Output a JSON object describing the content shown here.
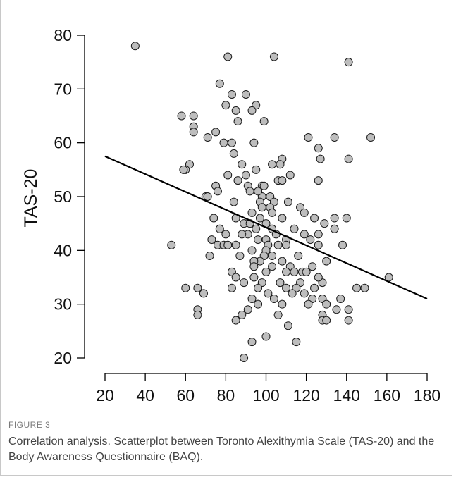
{
  "figure": {
    "label": "FIGURE 3",
    "caption": "Correlation analysis. Scatterplot between Toronto Alexithymia Scale (TAS-20) and the Body Awareness Questionnaire (BAQ)."
  },
  "chart_data": {
    "type": "scatter",
    "ylabel": "TAS-20",
    "xlabel": "",
    "xlim": [
      20,
      180
    ],
    "ylim": [
      20,
      80
    ],
    "x_ticks": [
      20,
      40,
      60,
      80,
      100,
      120,
      140,
      160,
      180
    ],
    "y_ticks": [
      20,
      30,
      40,
      50,
      60,
      70,
      80
    ],
    "grid": false,
    "colors": {
      "point_fill": "#bdbdbd",
      "point_stroke": "#1a1a1a",
      "line": "#000000"
    },
    "regression_line": {
      "x": [
        20,
        180
      ],
      "y": [
        57.5,
        31
      ]
    },
    "points": [
      [
        35,
        78
      ],
      [
        81,
        76
      ],
      [
        104,
        76
      ],
      [
        141,
        75
      ],
      [
        77,
        71
      ],
      [
        83,
        69
      ],
      [
        90,
        69
      ],
      [
        80,
        67
      ],
      [
        95,
        67
      ],
      [
        85,
        66
      ],
      [
        93,
        66
      ],
      [
        99,
        64
      ],
      [
        86,
        64
      ],
      [
        58,
        65
      ],
      [
        64,
        65
      ],
      [
        64,
        63
      ],
      [
        64,
        62
      ],
      [
        75,
        62
      ],
      [
        71,
        61
      ],
      [
        79,
        60
      ],
      [
        83,
        60
      ],
      [
        94,
        60
      ],
      [
        121,
        61
      ],
      [
        134,
        61
      ],
      [
        152,
        61
      ],
      [
        84,
        58
      ],
      [
        108,
        57
      ],
      [
        127,
        57
      ],
      [
        141,
        57
      ],
      [
        62,
        56
      ],
      [
        60,
        55
      ],
      [
        59,
        55
      ],
      [
        88,
        56
      ],
      [
        103,
        56
      ],
      [
        107,
        56
      ],
      [
        95,
        55
      ],
      [
        112,
        54
      ],
      [
        81,
        54
      ],
      [
        90,
        54
      ],
      [
        86,
        53
      ],
      [
        106,
        53
      ],
      [
        108,
        53
      ],
      [
        126,
        53
      ],
      [
        126,
        59
      ],
      [
        75,
        52
      ],
      [
        91,
        52
      ],
      [
        98,
        52
      ],
      [
        99,
        52
      ],
      [
        92,
        51
      ],
      [
        98,
        50
      ],
      [
        102,
        50
      ],
      [
        76,
        51
      ],
      [
        96,
        51
      ],
      [
        70,
        50
      ],
      [
        71,
        50
      ],
      [
        84,
        49
      ],
      [
        97,
        49
      ],
      [
        104,
        49
      ],
      [
        111,
        49
      ],
      [
        102,
        48
      ],
      [
        98,
        48
      ],
      [
        117,
        48
      ],
      [
        103,
        47
      ],
      [
        93,
        47
      ],
      [
        119,
        47
      ],
      [
        74,
        46
      ],
      [
        85,
        46
      ],
      [
        97,
        46
      ],
      [
        108,
        46
      ],
      [
        124,
        46
      ],
      [
        134,
        46
      ],
      [
        140,
        46
      ],
      [
        89,
        45
      ],
      [
        100,
        45
      ],
      [
        129,
        45
      ],
      [
        92,
        45
      ],
      [
        103,
        44
      ],
      [
        77,
        44
      ],
      [
        95,
        44
      ],
      [
        114,
        44
      ],
      [
        134,
        44
      ],
      [
        80,
        43
      ],
      [
        91,
        43
      ],
      [
        105,
        43
      ],
      [
        119,
        43
      ],
      [
        126,
        43
      ],
      [
        88,
        43
      ],
      [
        73,
        42
      ],
      [
        96,
        42
      ],
      [
        110,
        42
      ],
      [
        122,
        42
      ],
      [
        100,
        42
      ],
      [
        85,
        41
      ],
      [
        76,
        41
      ],
      [
        79,
        41
      ],
      [
        81,
        41
      ],
      [
        101,
        41
      ],
      [
        106,
        41
      ],
      [
        110,
        41
      ],
      [
        126,
        41
      ],
      [
        138,
        41
      ],
      [
        53,
        41
      ],
      [
        93,
        40
      ],
      [
        100,
        40
      ],
      [
        72,
        39
      ],
      [
        87,
        39
      ],
      [
        99,
        39
      ],
      [
        103,
        39
      ],
      [
        116,
        39
      ],
      [
        97,
        38
      ],
      [
        94,
        38
      ],
      [
        108,
        38
      ],
      [
        130,
        38
      ],
      [
        123,
        37
      ],
      [
        94,
        37
      ],
      [
        103,
        37
      ],
      [
        112,
        37
      ],
      [
        118,
        36
      ],
      [
        83,
        36
      ],
      [
        100,
        36
      ],
      [
        110,
        36
      ],
      [
        114,
        36
      ],
      [
        120,
        36
      ],
      [
        85,
        35
      ],
      [
        94,
        35
      ],
      [
        89,
        34
      ],
      [
        98,
        34
      ],
      [
        107,
        34
      ],
      [
        117,
        34
      ],
      [
        128,
        34
      ],
      [
        126,
        35
      ],
      [
        83,
        33
      ],
      [
        96,
        33
      ],
      [
        110,
        33
      ],
      [
        115,
        33
      ],
      [
        124,
        33
      ],
      [
        145,
        33
      ],
      [
        149,
        33
      ],
      [
        60,
        33
      ],
      [
        66,
        33
      ],
      [
        69,
        32
      ],
      [
        101,
        32
      ],
      [
        113,
        32
      ],
      [
        119,
        32
      ],
      [
        93,
        31
      ],
      [
        104,
        31
      ],
      [
        123,
        31
      ],
      [
        128,
        31
      ],
      [
        137,
        31
      ],
      [
        96,
        30
      ],
      [
        108,
        30
      ],
      [
        121,
        30
      ],
      [
        130,
        30
      ],
      [
        161,
        35
      ],
      [
        66,
        29
      ],
      [
        91,
        29
      ],
      [
        135,
        29
      ],
      [
        141,
        29
      ],
      [
        66,
        28
      ],
      [
        88,
        28
      ],
      [
        106,
        28
      ],
      [
        128,
        28
      ],
      [
        85,
        27
      ],
      [
        128,
        27
      ],
      [
        130,
        27
      ],
      [
        141,
        27
      ],
      [
        111,
        26
      ],
      [
        100,
        24
      ],
      [
        93,
        23
      ],
      [
        115,
        23
      ],
      [
        89,
        20
      ]
    ]
  }
}
